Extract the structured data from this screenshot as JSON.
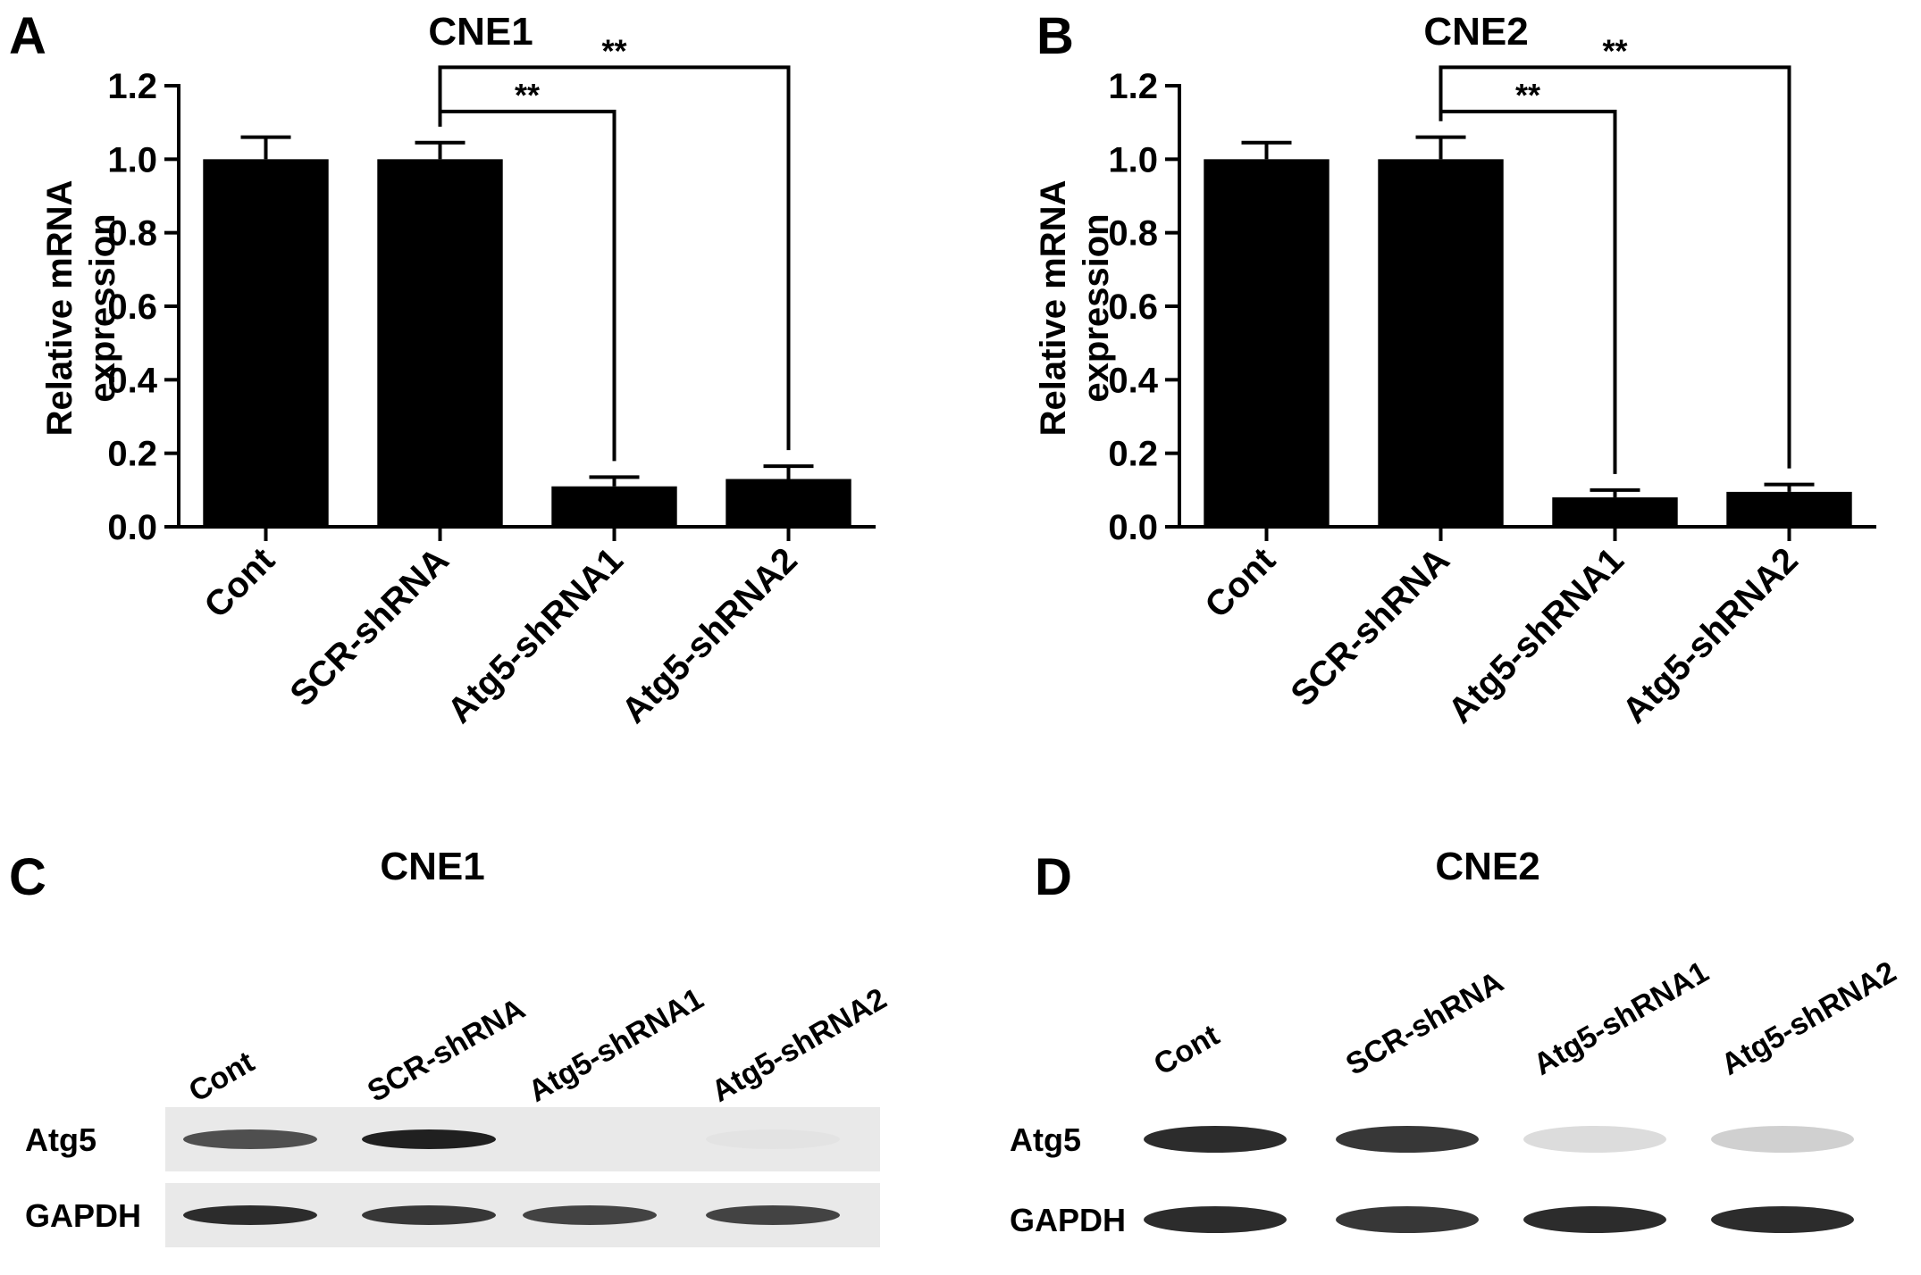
{
  "panels": {
    "A": {
      "letter": "A"
    },
    "B": {
      "letter": "B"
    },
    "C": {
      "letter": "C",
      "title": "CNE1"
    },
    "D": {
      "letter": "D",
      "title": "CNE2"
    }
  },
  "chart_data": [
    {
      "type": "bar",
      "panel": "A",
      "title": "CNE1",
      "ylabel_line1": "Relative mRNA",
      "ylabel_line2": "expression",
      "xlabel": "",
      "categories": [
        "Cont",
        "SCR-shRNA",
        "Atg5-shRNA1",
        "Atg5-shRNA2"
      ],
      "values": [
        1.0,
        1.0,
        0.11,
        0.13
      ],
      "errors": [
        0.06,
        0.045,
        0.025,
        0.035
      ],
      "ylim": [
        0,
        1.2
      ],
      "yticks": [
        "0.0",
        "0.2",
        "0.4",
        "0.6",
        "0.8",
        "1.0",
        "1.2"
      ],
      "bar_color": "#000000",
      "significance": [
        {
          "from": 1,
          "to": 2,
          "label": "**"
        },
        {
          "from": 1,
          "to": 3,
          "label": "**"
        }
      ]
    },
    {
      "type": "bar",
      "panel": "B",
      "title": "CNE2",
      "ylabel_line1": "Relative mRNA",
      "ylabel_line2": "expression",
      "xlabel": "",
      "categories": [
        "Cont",
        "SCR-shRNA",
        "Atg5-shRNA1",
        "Atg5-shRNA2"
      ],
      "values": [
        1.0,
        1.0,
        0.08,
        0.095
      ],
      "errors": [
        0.045,
        0.06,
        0.02,
        0.02
      ],
      "ylim": [
        0,
        1.2
      ],
      "yticks": [
        "0.0",
        "0.2",
        "0.4",
        "0.6",
        "0.8",
        "1.0",
        "1.2"
      ],
      "bar_color": "#000000",
      "significance": [
        {
          "from": 1,
          "to": 2,
          "label": "**"
        },
        {
          "from": 1,
          "to": 3,
          "label": "**"
        }
      ]
    }
  ],
  "blots": [
    {
      "panel": "C",
      "lanes": [
        "Cont",
        "SCR-shRNA",
        "Atg5-shRNA1",
        "Atg5-shRNA2"
      ],
      "rows": [
        {
          "label": "Atg5",
          "intensity": [
            0.75,
            0.95,
            0.0,
            0.12
          ]
        },
        {
          "label": "GAPDH",
          "intensity": [
            0.9,
            0.85,
            0.8,
            0.8
          ]
        }
      ]
    },
    {
      "panel": "D",
      "lanes": [
        "Cont",
        "SCR-shRNA",
        "Atg5-shRNA1",
        "Atg5-shRNA2"
      ],
      "rows": [
        {
          "label": "Atg5",
          "intensity": [
            0.9,
            0.85,
            0.15,
            0.2
          ]
        },
        {
          "label": "GAPDH",
          "intensity": [
            0.9,
            0.85,
            0.9,
            0.9
          ]
        }
      ]
    }
  ]
}
